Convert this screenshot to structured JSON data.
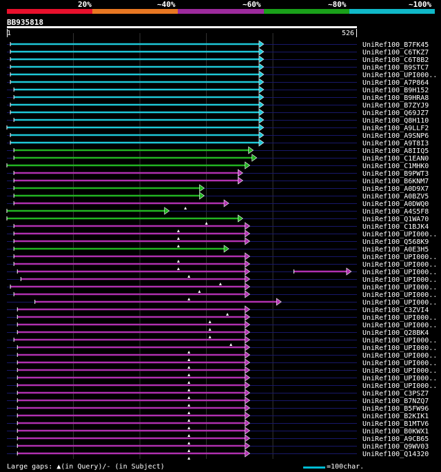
{
  "legend": {
    "colors": [
      "#e8102c",
      "#e87722",
      "#9c2a9c",
      "#1aa01a",
      "#10b8c8"
    ],
    "labels": [
      "20%",
      "~40%",
      "~60%",
      "~80%",
      "~100%"
    ]
  },
  "query": {
    "id": "BB935818",
    "start": "1",
    "end": "526"
  },
  "footer": {
    "gaps_text": "Large gaps: ▲(in Query)/- (in Subject)",
    "scale_text": "=100char."
  },
  "hits": [
    {
      "name": "UniRef100_B7FK45",
      "color": "cyan",
      "start": 0.01,
      "end": 0.73
    },
    {
      "name": "UniRef100_C6TKZ7",
      "color": "cyan",
      "start": 0.01,
      "end": 0.73
    },
    {
      "name": "UniRef100_C6T8B2",
      "color": "cyan",
      "start": 0.01,
      "end": 0.73
    },
    {
      "name": "UniRef100_B9STC7",
      "color": "cyan",
      "start": 0.01,
      "end": 0.73
    },
    {
      "name": "UniRef100_UPI000..",
      "color": "cyan",
      "start": 0.01,
      "end": 0.73
    },
    {
      "name": "UniRef100_A7P864",
      "color": "cyan",
      "start": 0.01,
      "end": 0.73
    },
    {
      "name": "UniRef100_B9H152",
      "color": "cyan",
      "start": 0.02,
      "end": 0.73
    },
    {
      "name": "UniRef100_B9HRA8",
      "color": "cyan",
      "start": 0.02,
      "end": 0.73
    },
    {
      "name": "UniRef100_B7ZYJ9",
      "color": "cyan",
      "start": 0.01,
      "end": 0.73
    },
    {
      "name": "UniRef100_Q69JZ7",
      "color": "cyan",
      "start": 0.01,
      "end": 0.73
    },
    {
      "name": "UniRef100_Q8H110",
      "color": "cyan",
      "start": 0.02,
      "end": 0.73
    },
    {
      "name": "UniRef100_A9LLF2",
      "color": "cyan",
      "start": 0.0,
      "end": 0.73
    },
    {
      "name": "UniRef100_A9SNP6",
      "color": "cyan",
      "start": 0.01,
      "end": 0.73
    },
    {
      "name": "UniRef100_A9T8I3",
      "color": "cyan",
      "start": 0.01,
      "end": 0.73
    },
    {
      "name": "UniRef100_A8IIQ5",
      "color": "green",
      "start": 0.02,
      "end": 0.7
    },
    {
      "name": "UniRef100_C1EAN0",
      "color": "green",
      "start": 0.02,
      "end": 0.71
    },
    {
      "name": "UniRef100_C1MHK0",
      "color": "green",
      "start": 0.0,
      "end": 0.69
    },
    {
      "name": "UniRef100_B9PWT3",
      "color": "purple",
      "start": 0.02,
      "end": 0.67
    },
    {
      "name": "UniRef100_B6KNM7",
      "color": "purple",
      "start": 0.02,
      "end": 0.67
    },
    {
      "name": "UniRef100_A0D9X7",
      "color": "green",
      "start": 0.02,
      "end": 0.56
    },
    {
      "name": "UniRef100_A0BZV5",
      "color": "green",
      "start": 0.02,
      "end": 0.56
    },
    {
      "name": "UniRef100_A0DWQ0",
      "color": "purple",
      "start": 0.02,
      "end": 0.63,
      "gap": 0.51
    },
    {
      "name": "UniRef100_A4S5F8",
      "color": "green",
      "start": 0.0,
      "end": 0.46
    },
    {
      "name": "UniRef100_Q1WA70",
      "color": "green",
      "start": 0.0,
      "end": 0.67,
      "gap": 0.57
    },
    {
      "name": "UniRef100_C1BJK4",
      "color": "purple",
      "start": 0.02,
      "end": 0.69,
      "gap": 0.49
    },
    {
      "name": "UniRef100_UPI000..",
      "color": "purple",
      "start": 0.02,
      "end": 0.69,
      "gap": 0.49
    },
    {
      "name": "UniRef100_Q568K9",
      "color": "purple",
      "start": 0.02,
      "end": 0.69,
      "gap": 0.49
    },
    {
      "name": "UniRef100_A0E3H5",
      "color": "green",
      "start": 0.02,
      "end": 0.63
    },
    {
      "name": "UniRef100_UPI000..",
      "color": "purple",
      "start": 0.02,
      "end": 0.69,
      "gap": 0.49
    },
    {
      "name": "UniRef100_UPI000..",
      "color": "purple",
      "start": 0.02,
      "end": 0.69,
      "gap": 0.49
    },
    {
      "name": "UniRef100_UPI000..",
      "color": "purple",
      "start": 0.03,
      "end": 0.69,
      "gap": 0.52,
      "extra_start": 0.82,
      "extra_end": 0.98
    },
    {
      "name": "UniRef100_UPI000..",
      "color": "purple",
      "start": 0.04,
      "end": 0.69,
      "gap": 0.61
    },
    {
      "name": "UniRef100_UPI000..",
      "color": "purple",
      "start": 0.01,
      "end": 0.69,
      "gap": 0.55
    },
    {
      "name": "UniRef100_UPI000..",
      "color": "purple",
      "start": 0.02,
      "end": 0.69,
      "gap": 0.52
    },
    {
      "name": "UniRef100_UPI000..",
      "color": "purple",
      "start": 0.08,
      "end": 0.78
    },
    {
      "name": "UniRef100_C3ZVI4",
      "color": "purple",
      "start": 0.03,
      "end": 0.69,
      "gap": 0.63
    },
    {
      "name": "UniRef100_UPI000..",
      "color": "purple",
      "start": 0.03,
      "end": 0.69,
      "gap": 0.58
    },
    {
      "name": "UniRef100_UPI000..",
      "color": "purple",
      "start": 0.03,
      "end": 0.69,
      "gap": 0.58
    },
    {
      "name": "UniRef100_Q28BK4",
      "color": "purple",
      "start": 0.03,
      "end": 0.69,
      "gap": 0.58
    },
    {
      "name": "UniRef100_UPI000..",
      "color": "purple",
      "start": 0.02,
      "end": 0.69,
      "gap": 0.64
    },
    {
      "name": "UniRef100_UPI000..",
      "color": "purple",
      "start": 0.03,
      "end": 0.69,
      "gap": 0.52
    },
    {
      "name": "UniRef100_UPI000..",
      "color": "purple",
      "start": 0.03,
      "end": 0.69,
      "gap": 0.52
    },
    {
      "name": "UniRef100_UPI000..",
      "color": "purple",
      "start": 0.03,
      "end": 0.69,
      "gap": 0.52
    },
    {
      "name": "UniRef100_UPI000..",
      "color": "purple",
      "start": 0.03,
      "end": 0.69,
      "gap": 0.52
    },
    {
      "name": "UniRef100_UPI000..",
      "color": "purple",
      "start": 0.03,
      "end": 0.69,
      "gap": 0.52
    },
    {
      "name": "UniRef100_UPI000..",
      "color": "purple",
      "start": 0.03,
      "end": 0.69,
      "gap": 0.52
    },
    {
      "name": "UniRef100_C3PSZ7",
      "color": "purple",
      "start": 0.03,
      "end": 0.69,
      "gap": 0.52
    },
    {
      "name": "UniRef100_B7NZQ7",
      "color": "purple",
      "start": 0.03,
      "end": 0.69,
      "gap": 0.52
    },
    {
      "name": "UniRef100_B5FW96",
      "color": "purple",
      "start": 0.03,
      "end": 0.69,
      "gap": 0.52
    },
    {
      "name": "UniRef100_B2KIK1",
      "color": "purple",
      "start": 0.03,
      "end": 0.69,
      "gap": 0.52
    },
    {
      "name": "UniRef100_B1MTV6",
      "color": "purple",
      "start": 0.03,
      "end": 0.69,
      "gap": 0.52
    },
    {
      "name": "UniRef100_B0KWX1",
      "color": "purple",
      "start": 0.03,
      "end": 0.69,
      "gap": 0.52
    },
    {
      "name": "UniRef100_A9CB65",
      "color": "purple",
      "start": 0.03,
      "end": 0.69,
      "gap": 0.52
    },
    {
      "name": "UniRef100_Q9WV03",
      "color": "purple",
      "start": 0.03,
      "end": 0.69,
      "gap": 0.52
    },
    {
      "name": "UniRef100_Q14320",
      "color": "purple",
      "start": 0.03,
      "end": 0.69,
      "gap": 0.52
    }
  ]
}
